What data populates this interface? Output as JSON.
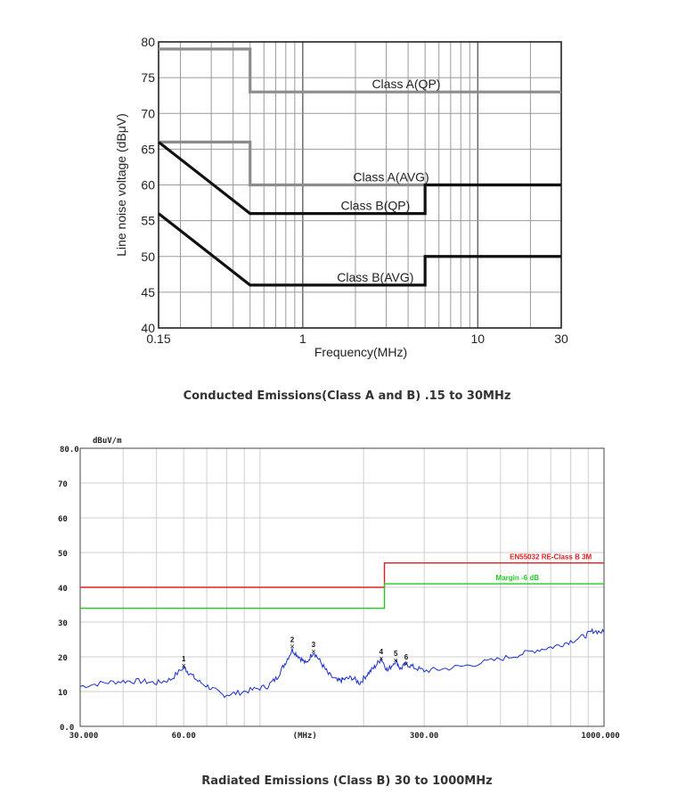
{
  "chart_data": [
    {
      "type": "line",
      "ylabel": "Line noise voltage (dBμV)",
      "xlabel": "Frequency(MHz)",
      "xscale": "log",
      "xlim": [
        0.15,
        30
      ],
      "ylim": [
        40,
        80
      ],
      "x_tick_labels": [
        "0.15",
        "1",
        "10",
        "30"
      ],
      "y_tick_labels": [
        "80",
        "75",
        "70",
        "65",
        "60",
        "55",
        "50",
        "45",
        "40"
      ],
      "series": [
        {
          "name": "Class A(QP)",
          "color": "#8c8c8c",
          "points": [
            [
              0.15,
              79
            ],
            [
              0.5,
              79
            ],
            [
              0.5,
              73
            ],
            [
              30,
              73
            ]
          ]
        },
        {
          "name": "Class A(AVG)",
          "color": "#8c8c8c",
          "points": [
            [
              0.15,
              66
            ],
            [
              0.5,
              66
            ],
            [
              0.5,
              60
            ],
            [
              30,
              60
            ]
          ]
        },
        {
          "name": "Class B(QP)",
          "color": "#111111",
          "points": [
            [
              0.15,
              66
            ],
            [
              0.5,
              56
            ],
            [
              5,
              56
            ],
            [
              5,
              60
            ],
            [
              30,
              60
            ]
          ]
        },
        {
          "name": "Class B(AVG)",
          "color": "#111111",
          "points": [
            [
              0.15,
              56
            ],
            [
              0.5,
              46
            ],
            [
              5,
              46
            ],
            [
              5,
              50
            ],
            [
              30,
              50
            ]
          ]
        }
      ],
      "caption": "Conducted Emissions(Class A and B) .15 to 30MHz"
    },
    {
      "type": "line",
      "ylabel": "dBuV/m",
      "xlabel": "(MHz)",
      "xscale": "log",
      "xlim": [
        30,
        1000
      ],
      "ylim": [
        0,
        80
      ],
      "x_tick_labels": [
        "30.000",
        "60.00",
        "(MHz)",
        "300.00",
        "1000.000"
      ],
      "y_tick_labels": [
        "80.0",
        "70",
        "60",
        "50",
        "40",
        "30",
        "20",
        "10",
        "0.0"
      ],
      "series": [
        {
          "name": "EN55032 RE-Class B 3M",
          "color": "#e02020",
          "points": [
            [
              30,
              40
            ],
            [
              230,
              40
            ],
            [
              230,
              47
            ],
            [
              1000,
              47
            ]
          ]
        },
        {
          "name": "Margin -6 dB",
          "color": "#22cc22",
          "points": [
            [
              30,
              34
            ],
            [
              230,
              34
            ],
            [
              230,
              41
            ],
            [
              1000,
              41
            ]
          ]
        },
        {
          "name": "",
          "color": "#1a2fd0",
          "points": [
            [
              30,
              11.5
            ],
            [
              35,
              12.5
            ],
            [
              40,
              13
            ],
            [
              45,
              13
            ],
            [
              50,
              12.5
            ],
            [
              55,
              13.5
            ],
            [
              60,
              17
            ],
            [
              62,
              15.5
            ],
            [
              66,
              13
            ],
            [
              72,
              11
            ],
            [
              78,
              9
            ],
            [
              85,
              9.5
            ],
            [
              95,
              10.5
            ],
            [
              105,
              11.5
            ],
            [
              112,
              14
            ],
            [
              118,
              18
            ],
            [
              124,
              22
            ],
            [
              130,
              20
            ],
            [
              136,
              18
            ],
            [
              143,
              21.5
            ],
            [
              150,
              18.5
            ],
            [
              158,
              15
            ],
            [
              168,
              13
            ],
            [
              175,
              13.5
            ],
            [
              185,
              14
            ],
            [
              195,
              12.5
            ],
            [
              205,
              15
            ],
            [
              215,
              17
            ],
            [
              225,
              19.5
            ],
            [
              235,
              16
            ],
            [
              248,
              19
            ],
            [
              256,
              16.5
            ],
            [
              266,
              18
            ],
            [
              280,
              17
            ],
            [
              300,
              16
            ],
            [
              340,
              16.5
            ],
            [
              400,
              17.5
            ],
            [
              480,
              19
            ],
            [
              560,
              20.5
            ],
            [
              640,
              22
            ],
            [
              720,
              23
            ],
            [
              800,
              24.5
            ],
            [
              880,
              26
            ],
            [
              930,
              27.5
            ],
            [
              1000,
              27
            ]
          ]
        }
      ],
      "markers": [
        {
          "label": "1",
          "x": 60,
          "y": 17.5
        },
        {
          "label": "2",
          "x": 124,
          "y": 23
        },
        {
          "label": "3",
          "x": 143,
          "y": 21.5
        },
        {
          "label": "4",
          "x": 225,
          "y": 19.5
        },
        {
          "label": "5",
          "x": 248,
          "y": 19
        },
        {
          "label": "6",
          "x": 266,
          "y": 18
        }
      ],
      "caption": "Radiated Emissions (Class B) 30 to 1000MHz"
    }
  ]
}
